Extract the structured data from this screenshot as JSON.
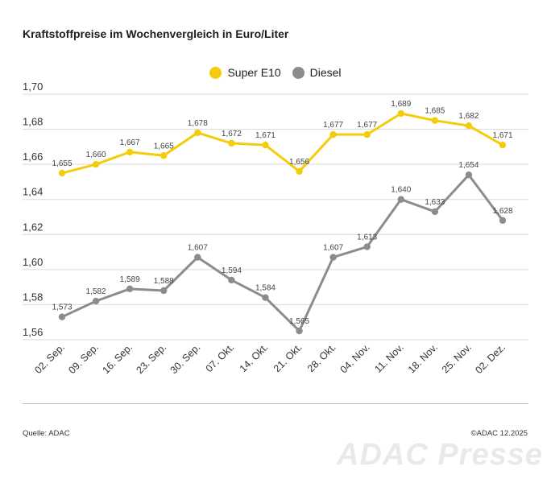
{
  "title": "Kraftstoffpreise im Wochenvergleich in Euro/Liter",
  "source": "Quelle: ADAC",
  "copyright": "©ADAC 12.2025",
  "watermark": "ADAC Presse",
  "colors": {
    "super": "#f5cc0c",
    "diesel": "#8c8c8c",
    "grid": "#d9d9d9"
  },
  "chart_data": {
    "type": "line",
    "categories": [
      "02. Sep.",
      "09. Sep.",
      "16. Sep.",
      "23. Sep.",
      "30. Sep.",
      "07. Okt.",
      "14. Okt.",
      "21. Okt.",
      "28. Okt.",
      "04. Nov.",
      "11. Nov.",
      "18. Nov.",
      "25. Nov.",
      "02. Dez."
    ],
    "series": [
      {
        "name": "Super E10",
        "values": [
          1.655,
          1.66,
          1.667,
          1.665,
          1.678,
          1.672,
          1.671,
          1.656,
          1.677,
          1.677,
          1.689,
          1.685,
          1.682,
          1.671
        ],
        "labels": [
          "1,655",
          "1,660",
          "1,667",
          "1,665",
          "1,678",
          "1,672",
          "1,671",
          "1,656",
          "1,677",
          "1,677",
          "1,689",
          "1,685",
          "1,682",
          "1,671"
        ]
      },
      {
        "name": "Diesel",
        "values": [
          1.573,
          1.582,
          1.589,
          1.588,
          1.607,
          1.594,
          1.584,
          1.565,
          1.607,
          1.613,
          1.64,
          1.633,
          1.654,
          1.628
        ],
        "labels": [
          "1,573",
          "1,582",
          "1,589",
          "1,588",
          "1,607",
          "1,594",
          "1,584",
          "1,565",
          "1,607",
          "1,613",
          "1,640",
          "1,633",
          "1,654",
          "1,628"
        ]
      }
    ],
    "yticks": [
      1.56,
      1.58,
      1.6,
      1.62,
      1.64,
      1.66,
      1.68,
      1.7
    ],
    "ytick_labels": [
      "1,56",
      "1,58",
      "1,60",
      "1,62",
      "1,64",
      "1,66",
      "1,68",
      "1,70"
    ],
    "ylim": [
      1.56,
      1.7
    ],
    "grid": true,
    "legend": "top-center"
  }
}
